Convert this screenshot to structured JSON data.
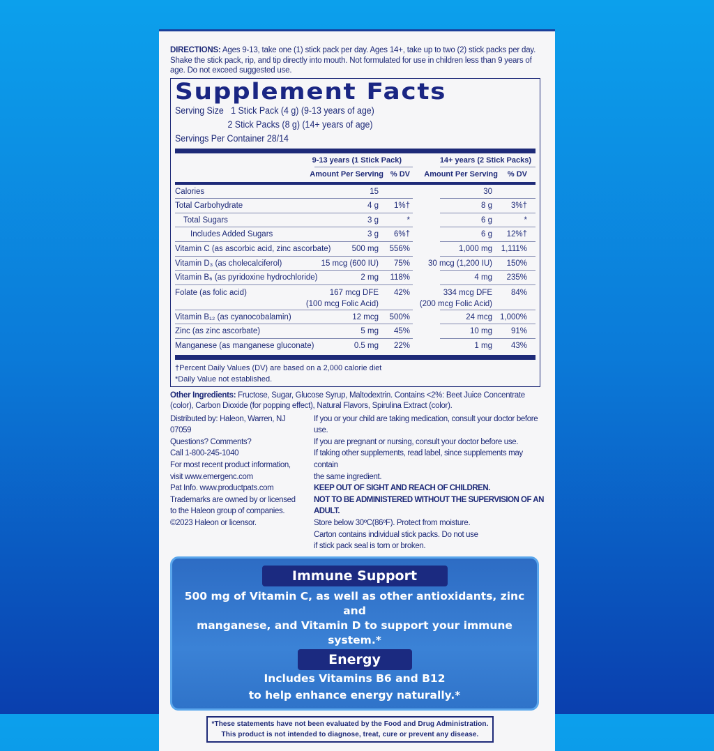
{
  "directions": {
    "label": "DIRECTIONS:",
    "text": " Ages 9-13, take one (1) stick pack per day. Ages 14+, take up to two (2) stick packs per day. Shake the stick pack, rip, and tip directly into mouth. Not formulated for use in children less than 9 years of age. Do not exceed suggested use."
  },
  "facts": {
    "title": "Supplement Facts",
    "serving_size_label": "Serving Size",
    "serving_size_1": "1 Stick Pack (4 g) (9-13 years of age)",
    "serving_size_2": "2 Stick Packs (8 g) (14+ years of age)",
    "servings_per_container": "Servings Per Container 28/14",
    "group1": "9-13 years (1 Stick Pack)",
    "group2": "14+ years (2 Stick Packs)",
    "amount_header": "Amount Per Serving",
    "dv_header": "% DV",
    "rows": [
      {
        "name": "Calories",
        "a1": "15",
        "d1": "",
        "a2": "30",
        "d2": ""
      },
      {
        "name": "Total Carbohydrate",
        "a1": "4 g",
        "d1": "1%†",
        "a2": "8 g",
        "d2": "3%†"
      },
      {
        "name": "Total Sugars",
        "a1": "3 g",
        "d1": "*",
        "a2": "6 g",
        "d2": "*"
      },
      {
        "name": "Includes Added Sugars",
        "a1": "3 g",
        "d1": "6%†",
        "a2": "6 g",
        "d2": "12%†"
      },
      {
        "name": "Vitamin C (as ascorbic acid, zinc ascorbate)",
        "a1": "500 mg",
        "d1": "556%",
        "a2": "1,000 mg",
        "d2": "1,111%"
      },
      {
        "name": "Vitamin D₃ (as cholecalciferol)",
        "a1": "15 mcg (600 IU)",
        "d1": "75%",
        "a2": "30 mcg (1,200 IU)",
        "d2": "150%"
      },
      {
        "name": "Vitamin B₆ (as pyridoxine hydrochloride)",
        "a1": "2 mg",
        "d1": "118%",
        "a2": "4 mg",
        "d2": "235%"
      },
      {
        "name": "Folate (as folic acid)",
        "a1": "167 mcg DFE",
        "a1b": "(100 mcg Folic Acid)",
        "d1": "42%",
        "a2": "334 mcg DFE",
        "a2b": "(200 mcg Folic Acid)",
        "d2": "84%"
      },
      {
        "name": "Vitamin B₁₂ (as cyanocobalamin)",
        "a1": "12 mcg",
        "d1": "500%",
        "a2": "24 mcg",
        "d2": "1,000%"
      },
      {
        "name": "Zinc (as zinc ascorbate)",
        "a1": "5 mg",
        "d1": "45%",
        "a2": "10 mg",
        "d2": "91%"
      },
      {
        "name": "Manganese (as manganese gluconate)",
        "a1": "0.5 mg",
        "d1": "22%",
        "a2": "1 mg",
        "d2": "43%"
      }
    ],
    "footnote1": "†Percent Daily Values (DV) are based on a 2,000 calorie diet",
    "footnote2": "*Daily Value not established."
  },
  "other": {
    "label": "Other Ingredients:",
    "text": " Fructose, Sugar, Glucose Syrup, Maltodextrin. Contains <2%: Beet Juice Concentrate (color), Carbon Dioxide (for popping effect), Natural Flavors, Spirulina Extract (color)."
  },
  "left_lines": [
    "Distributed by: Haleon, Warren, NJ 07059",
    "Questions? Comments?",
    "Call 1-800-245-1040",
    "For most recent product information,",
    "visit www.emergenc.com",
    "Pat Info. www.productpats.com",
    "Trademarks are owned by or licensed",
    "to the Haleon group of companies.",
    "©2023 Haleon or licensor."
  ],
  "right_lines": [
    "If you or your child are taking medication, consult your doctor before use.",
    "If you are pregnant or nursing, consult your doctor before use.",
    "If taking other supplements, read label, since supplements may contain",
    "the same ingredient.",
    "KEEP OUT OF SIGHT AND REACH OF CHILDREN.",
    "NOT TO BE ADMINISTERED WITHOUT THE SUPERVISION OF AN ADULT.",
    "Store below 30ºC(86ºF). Protect from moisture.",
    "Carton contains individual stick packs. Do not use",
    "if stick pack seal is torn or broken."
  ],
  "panel": {
    "heading1": "Immune Support",
    "text1a": "500 mg of Vitamin C, as well as other antioxidants, zinc and",
    "text1b": "manganese, and Vitamin D to support your immune system.*",
    "heading2": "Energy",
    "text2a": "Includes Vitamins B6 and B12",
    "text2b": "to help enhance energy naturally.*"
  },
  "disclaimer": {
    "line1": "*These statements have not been evaluated by the Food and Drug Administration.",
    "line2": "This product is not intended to diagnose, treat, cure or prevent any disease."
  },
  "colors": {
    "navy": "#1e2a78",
    "background_top": "#0ca0ec",
    "background_bottom": "#0a3fae",
    "panel": "#3b82d6"
  }
}
